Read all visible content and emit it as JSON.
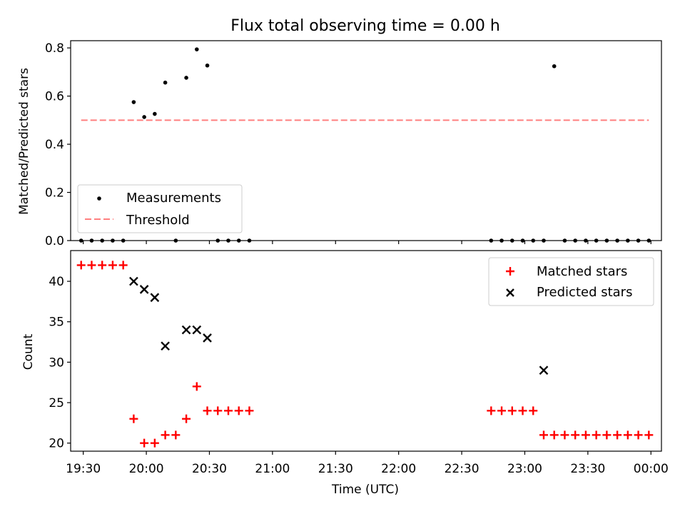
{
  "chart_data": [
    {
      "type": "scatter",
      "title": "Flux total observing time = 0.00 h",
      "ylabel": "Matched/Predicted stars",
      "xlabel": "",
      "xlim": [
        "19:24",
        "00:05"
      ],
      "ylim": [
        0,
        0.83
      ],
      "yticks": [
        0.0,
        0.2,
        0.4,
        0.6,
        0.8
      ],
      "ytick_labels": [
        "0.0",
        "0.2",
        "0.4",
        "0.6",
        "0.8"
      ],
      "grid": false,
      "legend": "lower-left",
      "series": [
        {
          "name": "Measurements",
          "kind": "scatter",
          "marker": "dot",
          "color": "#000000",
          "x": [
            "19:29",
            "19:34",
            "19:39",
            "19:44",
            "19:49",
            "19:54",
            "19:59",
            "20:04",
            "20:09",
            "20:14",
            "20:19",
            "20:24",
            "20:29",
            "20:34",
            "20:39",
            "20:44",
            "20:49",
            "22:44",
            "22:49",
            "22:54",
            "22:59",
            "23:04",
            "23:09",
            "23:14",
            "23:19",
            "23:24",
            "23:29",
            "23:34",
            "23:39",
            "23:44",
            "23:49",
            "23:54",
            "23:59"
          ],
          "y": [
            0.0,
            0.0,
            0.0,
            0.0,
            0.0,
            0.575,
            0.513,
            0.526,
            0.656,
            0.0,
            0.676,
            0.794,
            0.727,
            0.0,
            0.0,
            0.0,
            0.0,
            0.0,
            0.0,
            0.0,
            0.0,
            0.0,
            0.0,
            0.724,
            0.0,
            0.0,
            0.0,
            0.0,
            0.0,
            0.0,
            0.0,
            0.0,
            0.0
          ]
        },
        {
          "name": "Threshold",
          "kind": "line",
          "style": "dashed",
          "color": "#ff7f7f",
          "x": [
            "19:29",
            "23:59"
          ],
          "y": [
            0.5,
            0.5
          ]
        }
      ]
    },
    {
      "type": "scatter",
      "title": "",
      "xlabel": "Time (UTC)",
      "ylabel": "Count",
      "xlim": [
        "19:24",
        "00:05"
      ],
      "ylim": [
        19,
        43.8
      ],
      "xticks": [
        "19:30",
        "20:00",
        "20:30",
        "21:00",
        "21:30",
        "22:00",
        "22:30",
        "23:00",
        "23:30",
        "00:00"
      ],
      "yticks": [
        20,
        25,
        30,
        35,
        40
      ],
      "ytick_labels": [
        "20",
        "25",
        "30",
        "35",
        "40"
      ],
      "grid": false,
      "legend": "upper-right",
      "series": [
        {
          "name": "Matched stars",
          "marker": "plus",
          "color": "#ff0000",
          "x": [
            "19:29",
            "19:34",
            "19:39",
            "19:44",
            "19:49",
            "19:54",
            "19:59",
            "20:04",
            "20:09",
            "20:14",
            "20:19",
            "20:24",
            "20:29",
            "20:34",
            "20:39",
            "20:44",
            "20:49",
            "22:44",
            "22:49",
            "22:54",
            "22:59",
            "23:04",
            "23:09",
            "23:14",
            "23:19",
            "23:24",
            "23:29",
            "23:34",
            "23:39",
            "23:44",
            "23:49",
            "23:54",
            "23:59"
          ],
          "y": [
            42,
            42,
            42,
            42,
            42,
            23,
            20,
            20,
            21,
            21,
            23,
            27,
            24,
            24,
            24,
            24,
            24,
            24,
            24,
            24,
            24,
            24,
            21,
            21,
            21,
            21,
            21,
            21,
            21,
            21,
            21,
            21,
            21
          ]
        },
        {
          "name": "Predicted stars",
          "marker": "x",
          "color": "#000000",
          "x": [
            "19:54",
            "19:59",
            "20:04",
            "20:09",
            "20:19",
            "20:24",
            "20:29",
            "23:09"
          ],
          "y": [
            40,
            39,
            38,
            32,
            34,
            34,
            33,
            29
          ]
        }
      ]
    }
  ]
}
